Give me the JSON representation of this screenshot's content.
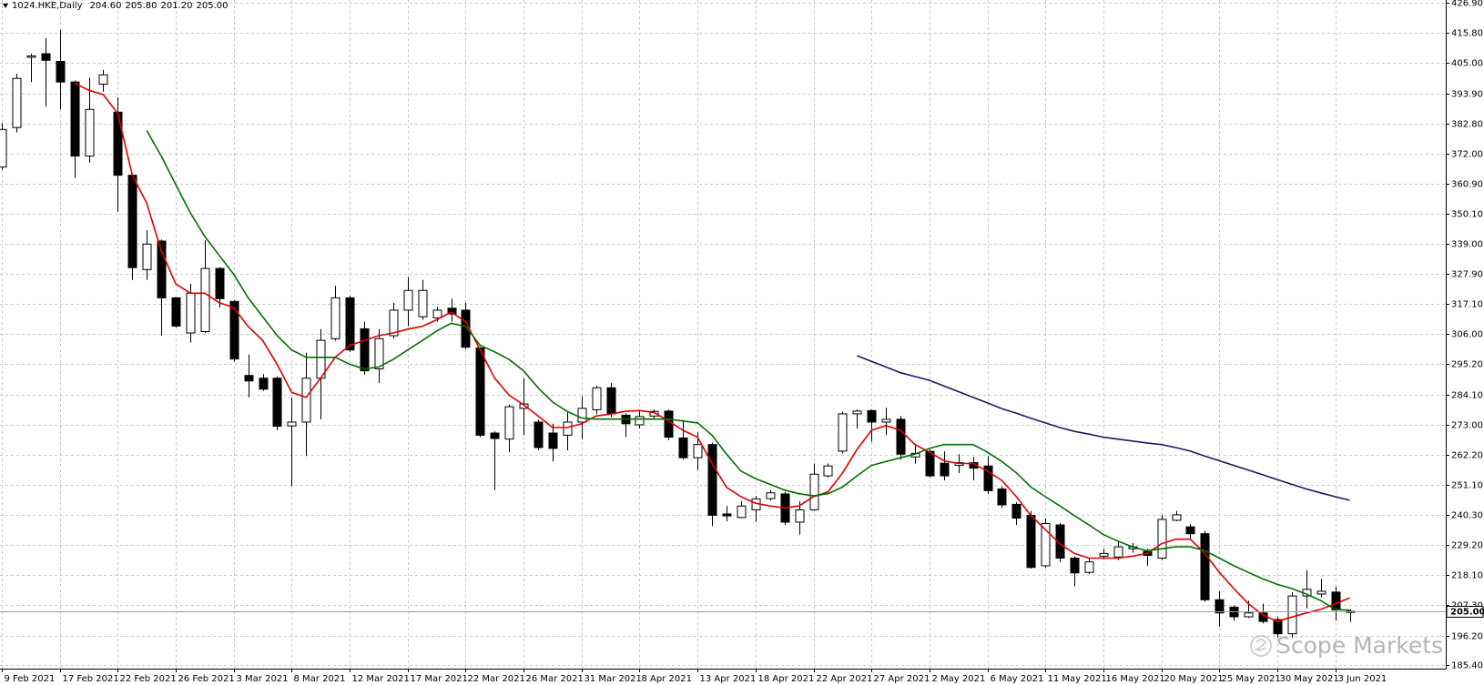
{
  "chart_data": {
    "type": "candlestick",
    "title": "1024.HKE,Daily",
    "header_values": [
      {
        "value": 204.6,
        "label": "204.60"
      },
      {
        "value": 205.8,
        "label": "205.80"
      },
      {
        "value": 201.2,
        "label": "201.20"
      },
      {
        "value": 205,
        "label": "205.00"
      }
    ],
    "watermark": "Scope Markets",
    "categories": [
      "9 Feb 2021",
      null,
      null,
      null,
      "17 Feb 2021",
      null,
      null,
      null,
      "22 Feb 2021",
      null,
      null,
      null,
      "26 Feb 2021",
      null,
      null,
      null,
      "3 Mar 2021",
      null,
      null,
      null,
      "8 Mar 2021",
      null,
      null,
      null,
      "12 Mar 2021",
      null,
      null,
      null,
      "17 Mar 2021",
      null,
      null,
      null,
      "22 Mar 2021",
      null,
      null,
      null,
      "26 Mar 2021",
      null,
      null,
      null,
      "31 Mar 2021",
      null,
      null,
      null,
      "8 Apr 2021",
      null,
      null,
      null,
      "13 Apr 2021",
      null,
      null,
      null,
      "18 Apr 2021",
      null,
      null,
      null,
      "22 Apr 2021",
      null,
      null,
      null,
      "27 Apr 2021",
      null,
      null,
      null,
      "2 May 2021",
      null,
      null,
      null,
      "6 May 2021",
      null,
      null,
      null,
      "11 May 2021",
      null,
      null,
      null,
      "16 May 2021",
      null,
      null,
      null,
      "20 May 2021",
      null,
      null,
      null,
      "25 May 2021",
      null,
      null,
      null,
      "30 May 2021",
      null,
      null,
      null,
      "3 Jun 2021",
      null
    ],
    "open": [
      367,
      381.4,
      407,
      408.3,
      405.5,
      398,
      371,
      397.2,
      387,
      364,
      329.6,
      340,
      319.3,
      306.5,
      307,
      330,
      318,
      291,
      290,
      290,
      272.6,
      274,
      290,
      304.4,
      319.3,
      308,
      293.4,
      305.5,
      314.8,
      312.4,
      312,
      315.5,
      314.8,
      301,
      270,
      267.8,
      279,
      274,
      270,
      269.2,
      274,
      278.5,
      286.5,
      276.5,
      273,
      276.2,
      278,
      268.2,
      261,
      265.8,
      240.5,
      239.2,
      242,
      246.1,
      247.8,
      237.5,
      242,
      254.4,
      263.4,
      277,
      278.2,
      274,
      275,
      261.3,
      263.3,
      259,
      258.2,
      259.2,
      258,
      249.6,
      244,
      240,
      221.6,
      236.5,
      224.4,
      219.2,
      225.1,
      224.8,
      227.8,
      226.8,
      224.4,
      238.2,
      235.8,
      233.3,
      209.2,
      206.5,
      203,
      204.4,
      202,
      196.8,
      210.6,
      211.3,
      212,
      204.6
    ],
    "high": [
      383,
      401,
      408.3,
      414,
      416.9,
      398.6,
      399.6,
      402.4,
      392.4,
      364.8,
      344,
      340.6,
      319.5,
      324.4,
      340.3,
      330.5,
      318.5,
      298.6,
      291.5,
      290.6,
      283,
      299.3,
      307.9,
      323.7,
      320,
      310.6,
      307.9,
      317.5,
      326.9,
      325.8,
      316,
      319,
      317.5,
      301.3,
      270.6,
      280.3,
      290,
      274.8,
      273.4,
      277.5,
      283.4,
      287.2,
      288.2,
      277.2,
      278.2,
      278.6,
      278.6,
      274.8,
      270.3,
      266.5,
      243.4,
      245.1,
      247.1,
      249.2,
      248.5,
      245.1,
      258.9,
      258.9,
      277.9,
      278.6,
      278.6,
      279.2,
      276.2,
      265.8,
      264,
      263.3,
      262.3,
      261.3,
      261.6,
      250.6,
      244.8,
      241.6,
      238.9,
      237.2,
      225.1,
      224.4,
      227.8,
      230.6,
      229.9,
      227.8,
      240.2,
      241.6,
      236.8,
      234.3,
      212.3,
      207.2,
      208.9,
      207.8,
      203,
      212,
      220,
      216.8,
      214,
      205.8
    ],
    "low": [
      366,
      379.6,
      398,
      389,
      388,
      363,
      368.6,
      394.5,
      350.7,
      325.8,
      325.8,
      305.5,
      308.5,
      303,
      306.5,
      315.8,
      296.1,
      283,
      285.4,
      271,
      250.6,
      261.6,
      275,
      303.7,
      299.6,
      291.3,
      288.2,
      304.4,
      308.9,
      311.3,
      310.6,
      310.6,
      300.6,
      268.5,
      249.2,
      263,
      269.2,
      263.7,
      259.6,
      263.7,
      267.8,
      276.9,
      275.8,
      268.5,
      271.7,
      275.1,
      267.5,
      260.3,
      256.5,
      236,
      237.8,
      238.9,
      237.5,
      245.4,
      236.5,
      233,
      241.6,
      253.7,
      262.6,
      271.7,
      266.8,
      269.2,
      260.3,
      258.9,
      253.7,
      252.7,
      255.4,
      252.7,
      247.8,
      242.7,
      236.5,
      220.6,
      220.9,
      223,
      214.1,
      218.6,
      224,
      223.7,
      226.4,
      221.6,
      223.7,
      237.8,
      231.6,
      208.5,
      199.4,
      201.6,
      202.6,
      200.6,
      195.3,
      195.3,
      206,
      210.2,
      201.6,
      201.2
    ],
    "close": [
      380.7,
      399.3,
      407.5,
      405.9,
      398,
      371,
      388,
      400.6,
      364,
      330.3,
      338.9,
      319.3,
      309,
      321,
      330,
      319,
      297,
      289,
      286,
      272.5,
      274,
      290,
      303.8,
      319.3,
      300.3,
      292.7,
      304.4,
      314.8,
      322,
      322,
      314.8,
      313.4,
      301.3,
      269.2,
      268,
      279.6,
      280.6,
      264.7,
      264.4,
      274,
      279,
      286.5,
      277,
      273.4,
      276,
      277.9,
      268.5,
      261,
      265.8,
      240,
      239.8,
      243.4,
      246,
      248.2,
      237.5,
      242,
      255,
      258,
      277,
      278,
      274,
      275,
      262.3,
      262.6,
      254.4,
      254.4,
      259.2,
      257.2,
      249,
      243.8,
      239,
      221,
      237,
      224.4,
      219,
      223,
      226.1,
      228.5,
      228.5,
      225.4,
      238.5,
      240.2,
      233.3,
      209.2,
      204.4,
      203,
      204.4,
      201.3,
      196.8,
      210.6,
      213,
      212.3,
      205.5,
      205
    ],
    "up_color": "#ffffff",
    "down_color": "#000000",
    "overlays": [
      {
        "color": "#e00000",
        "values": [
          null,
          null,
          null,
          null,
          null,
          397.6,
          395,
          393.4,
          386.5,
          364,
          353.8,
          336.5,
          324.4,
          321,
          321,
          317.5,
          315.8,
          308.9,
          303.7,
          295,
          284.8,
          283,
          290,
          297.6,
          302,
          303.7,
          305.5,
          306.5,
          307.9,
          308.9,
          311.3,
          314.1,
          310.6,
          300.3,
          290,
          283.8,
          280.3,
          276.2,
          272,
          272,
          273.4,
          276.2,
          276.9,
          277.9,
          278.2,
          277.5,
          274.4,
          271,
          268.5,
          258.9,
          250.2,
          246.8,
          244.4,
          243.4,
          242.7,
          243.4,
          246.8,
          248.5,
          255.4,
          264,
          271,
          272.7,
          271,
          265.8,
          263,
          259.9,
          258.9,
          258.9,
          256.1,
          252.7,
          246.8,
          239.9,
          234.8,
          229.6,
          226.1,
          224.4,
          224.4,
          224.4,
          225.1,
          226.1,
          229.6,
          231.3,
          231.3,
          226.1,
          219.2,
          213.3,
          207.8,
          203.7,
          201.3,
          202.9,
          204.4,
          205.7,
          207.8,
          209.9
        ]
      },
      {
        "color": "#007000",
        "values": [
          null,
          null,
          null,
          null,
          null,
          null,
          null,
          null,
          null,
          null,
          380.3,
          371,
          360.6,
          350.3,
          341.7,
          334.8,
          327.9,
          319.3,
          312.4,
          305.5,
          300.3,
          297.6,
          297.6,
          297.6,
          295.1,
          293.4,
          294.1,
          296.8,
          300.3,
          303.7,
          307.2,
          310,
          308.9,
          302,
          299.6,
          296.8,
          292.7,
          286.5,
          281.3,
          277.9,
          275.5,
          275.1,
          275.1,
          275.1,
          275.1,
          275.1,
          275.1,
          274.4,
          273.7,
          269.2,
          262.3,
          256.1,
          253.4,
          251.3,
          249.2,
          247.9,
          247.1,
          247.9,
          250.3,
          254.4,
          258.2,
          259.6,
          261,
          262.3,
          264.4,
          265.8,
          265.8,
          265.8,
          263,
          259.6,
          255.5,
          250.3,
          246.8,
          243.4,
          239.9,
          236.5,
          233,
          230.6,
          228.5,
          227.1,
          227.8,
          228.5,
          228.5,
          227.1,
          224.4,
          221.6,
          219.2,
          216.8,
          214.8,
          213.3,
          211.3,
          208.9,
          205.7,
          205.4
        ]
      },
      {
        "color": "#1a1a66",
        "values": [
          null,
          null,
          null,
          null,
          null,
          null,
          null,
          null,
          null,
          null,
          null,
          null,
          null,
          null,
          null,
          null,
          null,
          null,
          null,
          null,
          null,
          null,
          null,
          null,
          null,
          null,
          null,
          null,
          null,
          null,
          null,
          null,
          null,
          null,
          null,
          null,
          null,
          null,
          null,
          null,
          null,
          null,
          null,
          null,
          null,
          null,
          null,
          null,
          null,
          null,
          null,
          null,
          null,
          null,
          null,
          null,
          null,
          null,
          null,
          298.2,
          296.1,
          294.1,
          292,
          290.6,
          289.2,
          287.2,
          285.1,
          283,
          281,
          278.9,
          277.2,
          275.4,
          273.7,
          272,
          270.6,
          269.6,
          268.5,
          267.8,
          267.1,
          266.4,
          265.8,
          264.7,
          263.4,
          261.6,
          259.9,
          258.2,
          256.5,
          254.8,
          253,
          251.3,
          249.6,
          248.2,
          246.8,
          245.5
        ]
      }
    ],
    "last_price": {
      "value": 205,
      "label": "205.00"
    },
    "ylim": [
      184.1,
      427.9
    ],
    "yticks": [
      {
        "value": 426.9,
        "label": "426.90"
      },
      {
        "value": 415.8,
        "label": "415.80"
      },
      {
        "value": 405,
        "label": "405.00"
      },
      {
        "value": 393.9,
        "label": "393.90"
      },
      {
        "value": 382.8,
        "label": "382.80"
      },
      {
        "value": 372,
        "label": "372.00"
      },
      {
        "value": 360.9,
        "label": "360.90"
      },
      {
        "value": 350.1,
        "label": "350.10"
      },
      {
        "value": 339,
        "label": "339.00"
      },
      {
        "value": 327.9,
        "label": "327.90"
      },
      {
        "value": 317.1,
        "label": "317.10"
      },
      {
        "value": 306,
        "label": "306.00"
      },
      {
        "value": 295.2,
        "label": "295.20"
      },
      {
        "value": 284.1,
        "label": "284.10"
      },
      {
        "value": 273,
        "label": "273.00"
      },
      {
        "value": 262.2,
        "label": "262.20"
      },
      {
        "value": 251.1,
        "label": "251.10"
      },
      {
        "value": 240.3,
        "label": "240.30"
      },
      {
        "value": 229.2,
        "label": "229.20"
      },
      {
        "value": 218.1,
        "label": "218.10"
      },
      {
        "value": 207.3,
        "label": "207.30"
      },
      {
        "value": 196.2,
        "label": "196.20"
      },
      {
        "value": 185.4,
        "label": "185.40"
      }
    ],
    "grid": true
  }
}
